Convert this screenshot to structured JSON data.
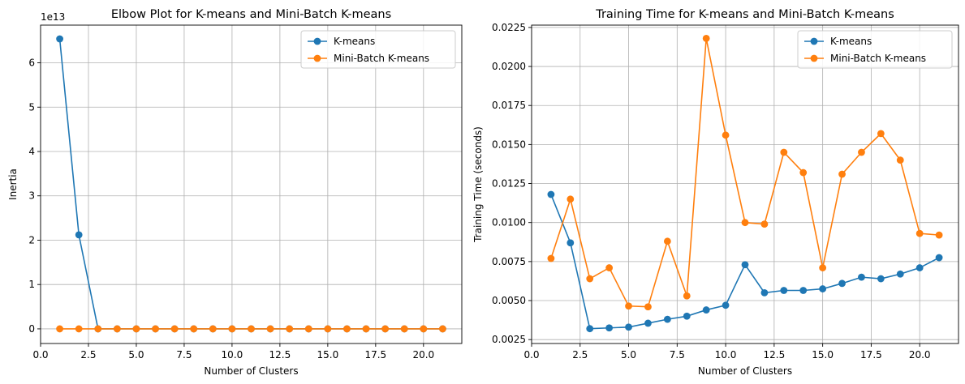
{
  "chart_data": [
    {
      "type": "line",
      "title": "Elbow Plot for K-means and Mini-Batch K-means",
      "xlabel": "Number of Clusters",
      "ylabel": "Inertia",
      "y_offset_label": "1e13",
      "xlim": [
        0,
        22
      ],
      "ylim": [
        -3300000000000.0,
        68500000000000.0
      ],
      "xticks": [
        0,
        2.5,
        5,
        7.5,
        10,
        12.5,
        15,
        17.5,
        20
      ],
      "xtick_labels": [
        "0.0",
        "2.5",
        "5.0",
        "7.5",
        "10.0",
        "12.5",
        "15.0",
        "17.5",
        "20.0"
      ],
      "yticks": [
        0,
        10000000000000.0,
        20000000000000.0,
        30000000000000.0,
        40000000000000.0,
        50000000000000.0,
        60000000000000.0
      ],
      "ytick_labels": [
        "0",
        "1",
        "2",
        "3",
        "4",
        "5",
        "6"
      ],
      "grid": true,
      "legend_position": "top-right",
      "x": [
        1,
        2,
        3,
        4,
        5,
        6,
        7,
        8,
        9,
        10,
        11,
        12,
        13,
        14,
        15,
        16,
        17,
        18,
        19,
        20,
        21
      ],
      "series": [
        {
          "name": "K-means",
          "color": "#1f77b4",
          "values": [
            65400000000000.0,
            21200000000000.0,
            0,
            0,
            0,
            0,
            0,
            0,
            0,
            0,
            0,
            0,
            0,
            0,
            0,
            0,
            0,
            0,
            0,
            0,
            0
          ]
        },
        {
          "name": "Mini-Batch K-means",
          "color": "#ff7f0e",
          "values": [
            0,
            0,
            0,
            0,
            0,
            0,
            0,
            0,
            0,
            0,
            0,
            0,
            0,
            0,
            0,
            0,
            0,
            0,
            0,
            0,
            0
          ]
        }
      ]
    },
    {
      "type": "line",
      "title": "Training Time for K-means and Mini-Batch K-means",
      "xlabel": "Number of Clusters",
      "ylabel": "Training Time (seconds)",
      "xlim": [
        0,
        22
      ],
      "ylim": [
        0.00225,
        0.02265
      ],
      "xticks": [
        0,
        2.5,
        5,
        7.5,
        10,
        12.5,
        15,
        17.5,
        20
      ],
      "xtick_labels": [
        "0.0",
        "2.5",
        "5.0",
        "7.5",
        "10.0",
        "12.5",
        "15.0",
        "17.5",
        "20.0"
      ],
      "yticks": [
        0.0025,
        0.005,
        0.0075,
        0.01,
        0.0125,
        0.015,
        0.0175,
        0.02,
        0.0225
      ],
      "ytick_labels": [
        "0.0025",
        "0.0050",
        "0.0075",
        "0.0100",
        "0.0125",
        "0.0150",
        "0.0175",
        "0.0200",
        "0.0225"
      ],
      "grid": true,
      "legend_position": "top-right",
      "x": [
        1,
        2,
        3,
        4,
        5,
        6,
        7,
        8,
        9,
        10,
        11,
        12,
        13,
        14,
        15,
        16,
        17,
        18,
        19,
        20,
        21
      ],
      "series": [
        {
          "name": "K-means",
          "color": "#1f77b4",
          "values": [
            0.0118,
            0.0087,
            0.0032,
            0.00325,
            0.0033,
            0.00355,
            0.0038,
            0.004,
            0.0044,
            0.0047,
            0.0073,
            0.0055,
            0.00565,
            0.00565,
            0.00575,
            0.0061,
            0.0065,
            0.0064,
            0.0067,
            0.0071,
            0.00775
          ]
        },
        {
          "name": "Mini-Batch K-means",
          "color": "#ff7f0e",
          "values": [
            0.0077,
            0.0115,
            0.0064,
            0.0071,
            0.00465,
            0.0046,
            0.0088,
            0.0053,
            0.0218,
            0.0156,
            0.01,
            0.0099,
            0.0145,
            0.0132,
            0.0071,
            0.0131,
            0.0145,
            0.0157,
            0.014,
            0.0093,
            0.0092
          ]
        }
      ]
    }
  ]
}
